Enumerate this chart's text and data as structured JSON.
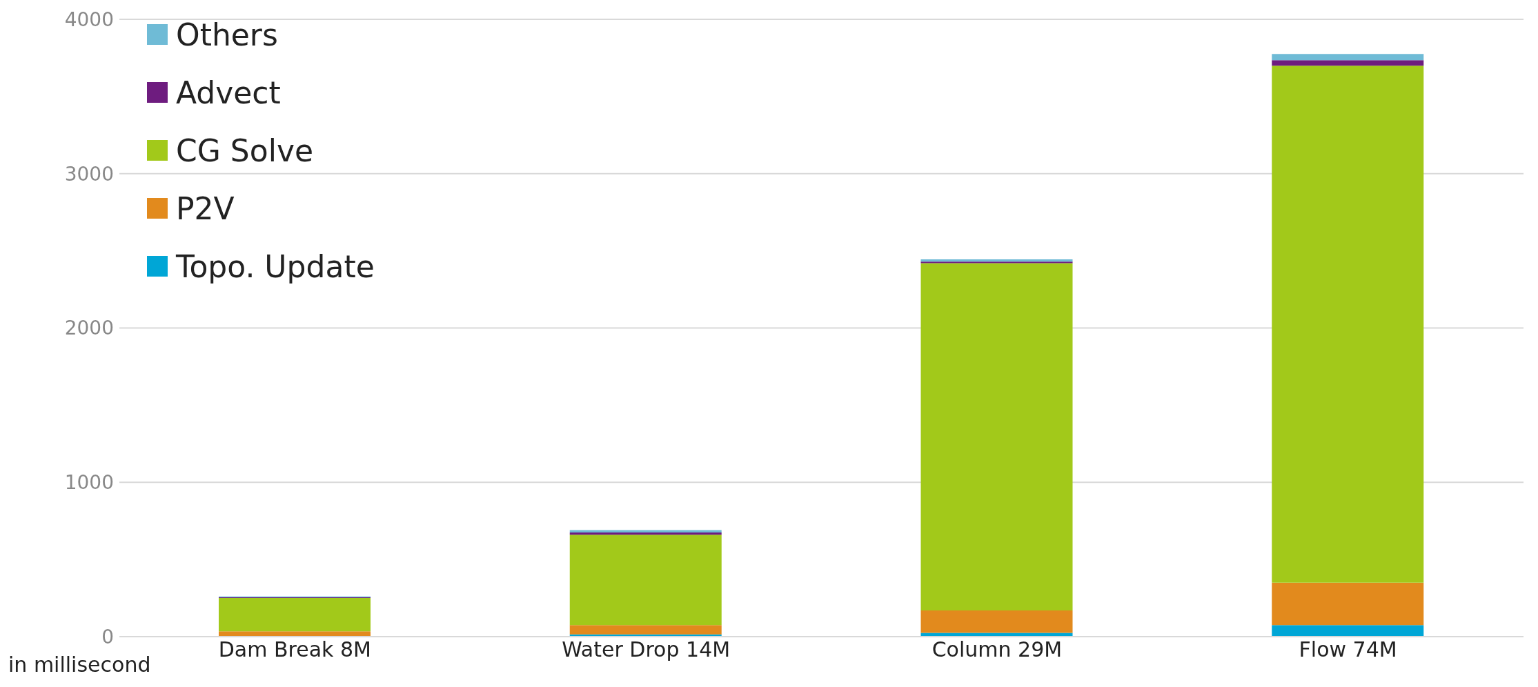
{
  "chart_data": {
    "type": "bar",
    "stacked": true,
    "categories": [
      "Dam Break 8M",
      "Water Drop 14M",
      "Column 29M",
      "Flow 74M"
    ],
    "series": [
      {
        "name": "Topo. Update",
        "color": "#00a6d6",
        "values": [
          null,
          15,
          25,
          75
        ]
      },
      {
        "name": "P2V",
        "color": "#e28a1d",
        "values": [
          35,
          60,
          145,
          275
        ]
      },
      {
        "name": "CG Solve",
        "color": "#a2c91a",
        "values": [
          215,
          585,
          2250,
          3350
        ]
      },
      {
        "name": "Advect",
        "color": "#6e1c7f",
        "values": [
          5,
          15,
          10,
          35
        ]
      },
      {
        "name": "Others",
        "color": "#6fbbd6",
        "values": [
          5,
          15,
          15,
          40
        ]
      }
    ],
    "ylim": [
      0,
      4000
    ],
    "yticks": [
      0,
      1000,
      2000,
      3000,
      4000
    ],
    "grid": "y",
    "legend": "top left",
    "annotations": [
      "in millisecond"
    ]
  }
}
